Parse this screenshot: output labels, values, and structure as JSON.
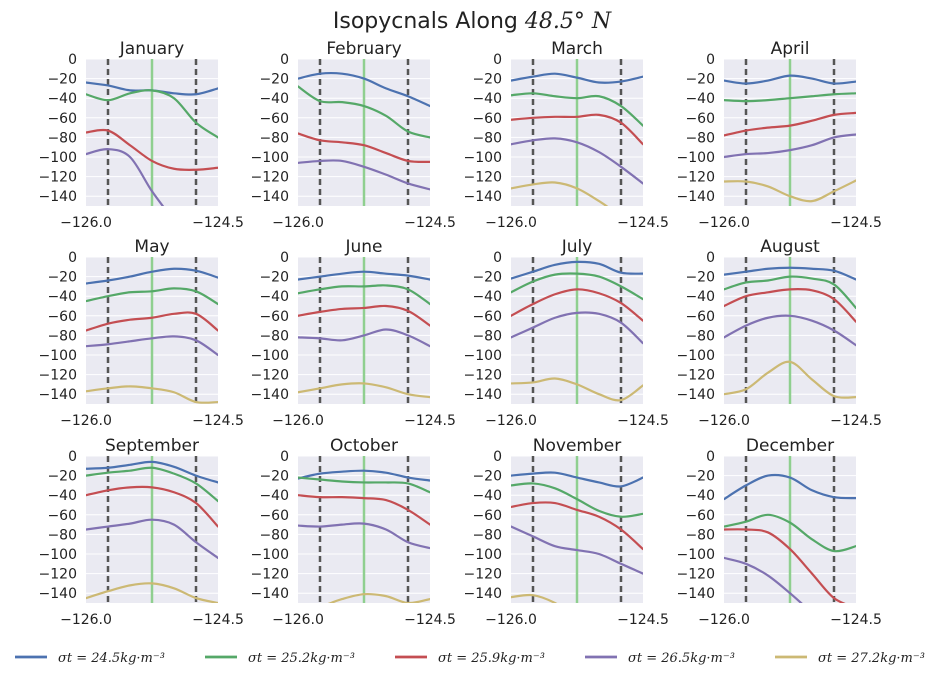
{
  "figure": {
    "title_text": "Isopycnals Along ",
    "title_math": "48.5° N"
  },
  "colors": {
    "panel_bg": "#eaeaf2",
    "grid": "#ffffff",
    "vline_dash": "#555555",
    "vline_center": "#8fcf8f"
  },
  "chart_data": {
    "type": "line",
    "xlim": [
      -126.0,
      -124.5
    ],
    "ylim": [
      -150,
      0
    ],
    "xticks": [
      -126.0,
      -124.5
    ],
    "xtick_labels": [
      "−126.0",
      "−124.5"
    ],
    "yticks": [
      0,
      -20,
      -40,
      -60,
      -80,
      -100,
      -120,
      -140
    ],
    "ytick_labels": [
      "0",
      "−20",
      "−40",
      "−60",
      "−80",
      "−100",
      "−120",
      "−140"
    ],
    "vlines_dashed": [
      -125.75,
      -124.75
    ],
    "vline_center": -125.25,
    "grid": true,
    "legend_position": "bottom",
    "series_legend": [
      {
        "label": "σt = 24.5kg·m⁻³",
        "color": "#4c72b0"
      },
      {
        "label": "σt = 25.2kg·m⁻³",
        "color": "#55a868"
      },
      {
        "label": "σt = 25.9kg·m⁻³",
        "color": "#c44e52"
      },
      {
        "label": "σt = 26.5kg·m⁻³",
        "color": "#8172b2"
      },
      {
        "label": "σt = 27.2kg·m⁻³",
        "color": "#ccb974"
      }
    ],
    "x": [
      -126.0,
      -125.75,
      -125.5,
      -125.25,
      -125.0,
      -124.75,
      -124.5
    ],
    "panels": [
      {
        "title": "January",
        "series": [
          [
            -24,
            -27,
            -32,
            -32,
            -35,
            -36,
            -30
          ],
          [
            -36,
            -42,
            -35,
            -32,
            -40,
            -65,
            -80
          ],
          [
            -75,
            -73,
            -88,
            -104,
            -112,
            -113,
            -111
          ],
          [
            -97,
            -92,
            -100,
            -135,
            -165,
            null,
            null
          ],
          [
            null,
            null,
            null,
            null,
            null,
            null,
            null
          ]
        ]
      },
      {
        "title": "February",
        "series": [
          [
            -20,
            -15,
            -15,
            -20,
            -30,
            -38,
            -48
          ],
          [
            -28,
            -43,
            -44,
            -48,
            -58,
            -74,
            -80
          ],
          [
            -76,
            -83,
            -85,
            -88,
            -96,
            -104,
            -105
          ],
          [
            -106,
            -104,
            -104,
            -110,
            -118,
            -127,
            -133
          ],
          [
            null,
            null,
            null,
            null,
            null,
            null,
            null
          ]
        ]
      },
      {
        "title": "March",
        "series": [
          [
            -22,
            -18,
            -15,
            -19,
            -24,
            -23,
            -18
          ],
          [
            -37,
            -35,
            -38,
            -40,
            -38,
            -48,
            -68
          ],
          [
            -62,
            -60,
            -59,
            -59,
            -57,
            -65,
            -87
          ],
          [
            -87,
            -83,
            -81,
            -85,
            -95,
            -110,
            -127
          ],
          [
            -132,
            -128,
            -126,
            -132,
            -145,
            -160,
            -172
          ]
        ]
      },
      {
        "title": "April",
        "series": [
          [
            -22,
            -25,
            -22,
            -17,
            -20,
            -25,
            -23
          ],
          [
            -42,
            -43,
            -42,
            -40,
            -38,
            -36,
            -35
          ],
          [
            -78,
            -73,
            -70,
            -68,
            -63,
            -57,
            -55
          ],
          [
            -100,
            -97,
            -96,
            -93,
            -88,
            -80,
            -77
          ],
          [
            -125,
            -125,
            -130,
            -140,
            -145,
            -135,
            -124
          ]
        ]
      },
      {
        "title": "May",
        "series": [
          [
            -27,
            -24,
            -20,
            -15,
            -12,
            -14,
            -21
          ],
          [
            -45,
            -40,
            -36,
            -35,
            -32,
            -35,
            -48
          ],
          [
            -75,
            -68,
            -64,
            -62,
            -58,
            -58,
            -75
          ],
          [
            -91,
            -89,
            -86,
            -83,
            -81,
            -85,
            -100
          ],
          [
            -137,
            -134,
            -132,
            -134,
            -138,
            -148,
            -148
          ]
        ]
      },
      {
        "title": "June",
        "series": [
          [
            -23,
            -20,
            -17,
            -15,
            -17,
            -19,
            -23
          ],
          [
            -37,
            -33,
            -30,
            -30,
            -29,
            -33,
            -48
          ],
          [
            -60,
            -56,
            -53,
            -52,
            -50,
            -55,
            -70
          ],
          [
            -82,
            -83,
            -85,
            -80,
            -74,
            -80,
            -91
          ],
          [
            -138,
            -134,
            -130,
            -129,
            -133,
            -140,
            -143
          ]
        ]
      },
      {
        "title": "July",
        "series": [
          [
            -22,
            -15,
            -8,
            -5,
            -7,
            -16,
            -17
          ],
          [
            -36,
            -25,
            -18,
            -17,
            -20,
            -30,
            -43
          ],
          [
            -60,
            -48,
            -38,
            -33,
            -37,
            -47,
            -65
          ],
          [
            -82,
            -72,
            -62,
            -57,
            -58,
            -67,
            -88
          ],
          [
            -129,
            -128,
            -124,
            -130,
            -140,
            -146,
            -131
          ]
        ]
      },
      {
        "title": "August",
        "series": [
          [
            -18,
            -15,
            -12,
            -11,
            -12,
            -14,
            -23
          ],
          [
            -33,
            -26,
            -24,
            -20,
            -22,
            -28,
            -52
          ],
          [
            -50,
            -40,
            -36,
            -33,
            -34,
            -43,
            -66
          ],
          [
            -82,
            -70,
            -62,
            -60,
            -65,
            -75,
            -90
          ],
          [
            -140,
            -135,
            -118,
            -107,
            -125,
            -142,
            -143
          ]
        ]
      },
      {
        "title": "September",
        "series": [
          [
            -13,
            -12,
            -9,
            -6,
            -11,
            -20,
            -27
          ],
          [
            -20,
            -17,
            -15,
            -12,
            -18,
            -28,
            -46
          ],
          [
            -40,
            -35,
            -32,
            -32,
            -37,
            -48,
            -72
          ],
          [
            -75,
            -72,
            -69,
            -65,
            -70,
            -88,
            -104
          ],
          [
            -145,
            -138,
            -132,
            -130,
            -135,
            -145,
            -150
          ]
        ]
      },
      {
        "title": "October",
        "series": [
          [
            -23,
            -18,
            -16,
            -15,
            -17,
            -22,
            -25
          ],
          [
            -22,
            -24,
            -26,
            -27,
            -27,
            -28,
            -37
          ],
          [
            -40,
            -42,
            -42,
            -43,
            -45,
            -55,
            -70
          ],
          [
            -71,
            -72,
            -70,
            -69,
            -75,
            -88,
            -94
          ],
          [
            -160,
            -154,
            -146,
            -141,
            -143,
            -150,
            -146
          ]
        ]
      },
      {
        "title": "November",
        "series": [
          [
            -20,
            -18,
            -17,
            -22,
            -27,
            -31,
            -22
          ],
          [
            -30,
            -28,
            -33,
            -44,
            -56,
            -62,
            -59
          ],
          [
            -52,
            -48,
            -48,
            -55,
            -62,
            -75,
            -95
          ],
          [
            -72,
            -82,
            -92,
            -96,
            -100,
            -110,
            -120
          ],
          [
            -144,
            -142,
            -150,
            -165,
            null,
            null,
            null
          ]
        ]
      },
      {
        "title": "December",
        "series": [
          [
            -44,
            -30,
            -20,
            -22,
            -35,
            -42,
            -43
          ],
          [
            -72,
            -67,
            -60,
            -68,
            -85,
            -97,
            -92
          ],
          [
            -75,
            -75,
            -78,
            -95,
            -120,
            -145,
            -155
          ],
          [
            -104,
            -110,
            -122,
            -140,
            -160,
            null,
            null
          ],
          [
            null,
            null,
            null,
            null,
            null,
            null,
            null
          ]
        ]
      }
    ]
  }
}
